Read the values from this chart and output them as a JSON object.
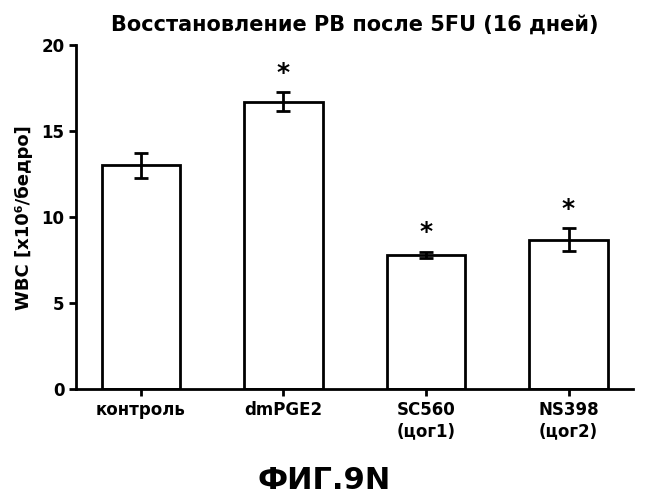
{
  "title": "Восстановление РВ после 5FU (16 дней)",
  "ylabel": "WBC [x10⁶/бедро]",
  "values": [
    13.0,
    16.7,
    7.8,
    8.7
  ],
  "errors": [
    0.7,
    0.55,
    0.2,
    0.65
  ],
  "show_star": [
    false,
    true,
    true,
    true
  ],
  "ylim": [
    0,
    20
  ],
  "yticks": [
    0,
    5,
    10,
    15,
    20
  ],
  "bar_color": "#ffffff",
  "bar_edgecolor": "#000000",
  "bar_linewidth": 2.0,
  "error_color": "#000000",
  "error_linewidth": 2.0,
  "error_capsize": 5,
  "star_fontsize": 18,
  "title_fontsize": 15,
  "ylabel_fontsize": 13,
  "tick_fontsize": 12,
  "caption_fontsize": 22,
  "background_color": "#ffffff"
}
